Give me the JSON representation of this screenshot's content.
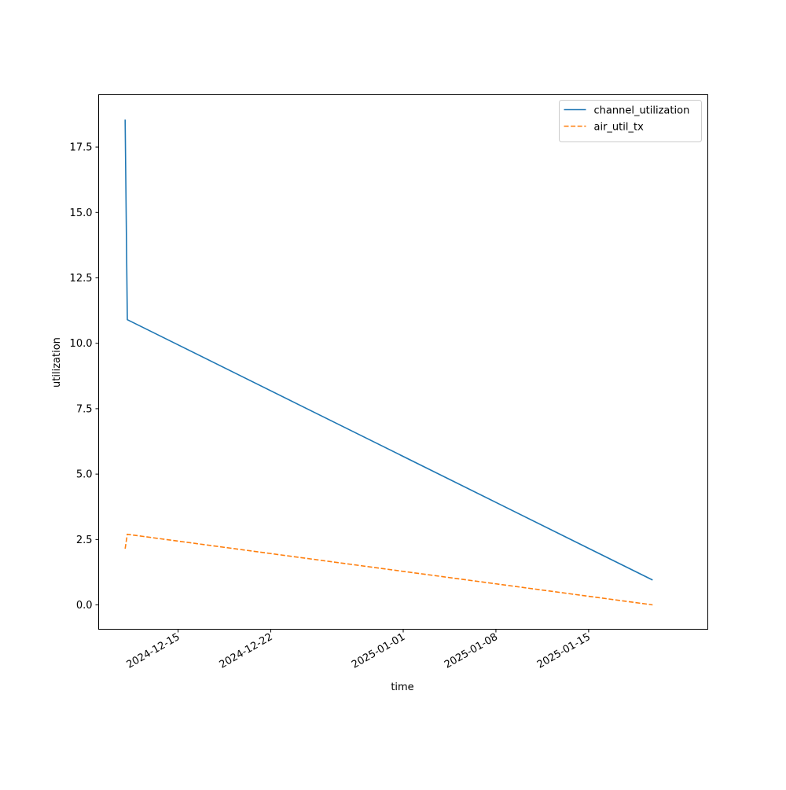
{
  "chart_data": {
    "type": "line",
    "title": "",
    "xlabel": "time",
    "ylabel": "utilization",
    "x_axis_type": "date",
    "xlim": [
      "2024-12-09",
      "2025-01-24"
    ],
    "ylim": [
      -0.93,
      19.5
    ],
    "x_ticks": [
      "2024-12-15",
      "2024-12-22",
      "2025-01-01",
      "2025-01-08",
      "2025-01-15"
    ],
    "y_ticks": [
      0.0,
      2.5,
      5.0,
      7.5,
      10.0,
      12.5,
      15.0,
      17.5
    ],
    "y_tick_labels": [
      "0.0",
      "2.5",
      "5.0",
      "7.5",
      "10.0",
      "12.5",
      "15.0",
      "17.5"
    ],
    "grid": false,
    "legend_position": "top-right",
    "series": [
      {
        "name": "channel_utilization",
        "color": "#1f77b4",
        "linestyle": "solid",
        "points": [
          {
            "x": "2024-12-11T00:00",
            "y": 18.55
          },
          {
            "x": "2024-12-11T04:00",
            "y": 10.9
          },
          {
            "x": "2025-01-19T20:00",
            "y": 0.95
          }
        ]
      },
      {
        "name": "air_util_tx",
        "color": "#ff7f0e",
        "linestyle": "dashed",
        "points": [
          {
            "x": "2024-12-11T00:00",
            "y": 2.15
          },
          {
            "x": "2024-12-11T04:00",
            "y": 2.7
          },
          {
            "x": "2025-01-19T20:00",
            "y": 0.0
          }
        ]
      }
    ]
  }
}
